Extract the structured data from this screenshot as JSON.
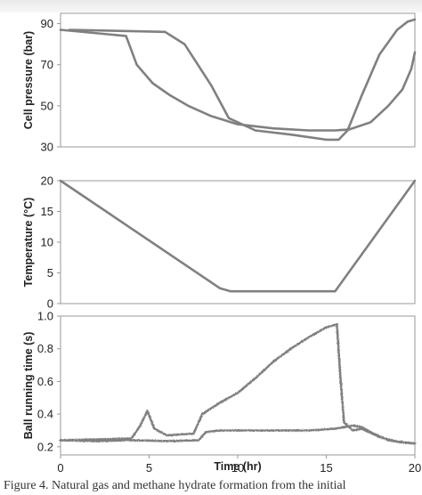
{
  "caption": "Figure 4. Natural gas and methane hydrate formation from the initial",
  "chart_data": [
    {
      "type": "line",
      "ylabel": "Cell pressure (bar)",
      "xlim": [
        0,
        20
      ],
      "ylim": [
        30,
        95
      ],
      "yticks": [
        30,
        50,
        70,
        90
      ],
      "grid": false,
      "color": "#808080",
      "series": [
        {
          "x": [
            0.5,
            5.9,
            7.0,
            8.5,
            9.5,
            11.0,
            13.0,
            15.0,
            15.7,
            16.2,
            17.0,
            18.0,
            19.0,
            19.6,
            20.0
          ],
          "y": [
            87,
            86,
            80,
            60,
            44,
            38,
            36,
            33.5,
            33.5,
            38,
            55,
            75,
            87,
            91,
            92
          ]
        },
        {
          "x": [
            0.0,
            3.7,
            4.3,
            5.2,
            6.2,
            7.2,
            8.5,
            10.0,
            12.0,
            14.0,
            15.5,
            16.3,
            17.5,
            18.5,
            19.3,
            19.8,
            20.0
          ],
          "y": [
            87,
            84,
            70,
            61,
            55,
            50,
            45,
            41,
            39,
            38,
            38,
            38.5,
            42,
            50,
            58,
            68,
            76
          ]
        }
      ]
    },
    {
      "type": "line",
      "ylabel": "Temperature (°C)",
      "xlim": [
        0,
        20
      ],
      "ylim": [
        0,
        20
      ],
      "yticks": [
        0,
        5,
        10,
        15,
        20
      ],
      "grid": false,
      "color": "#808080",
      "series": [
        {
          "x": [
            0.0,
            9.0,
            9.6,
            15.5,
            20.0
          ],
          "y": [
            20,
            2.5,
            2.0,
            2.0,
            20
          ]
        }
      ]
    },
    {
      "type": "line",
      "xlabel": "Time (hr)",
      "ylabel": "Ball running time (s)",
      "xlim": [
        0,
        20
      ],
      "ylim": [
        0.15,
        1.0
      ],
      "xticks": [
        0,
        5,
        10,
        15,
        20
      ],
      "yticks": [
        0.2,
        0.4,
        0.6,
        0.8,
        1.0
      ],
      "grid": false,
      "color": "#808080",
      "series": [
        {
          "x": [
            0.0,
            4.0,
            4.5,
            4.9,
            5.3,
            6.0,
            7.5,
            8.0,
            9.0,
            10.0,
            11.0,
            12.0,
            13.0,
            14.0,
            15.0,
            15.6,
            15.8,
            16.0,
            16.5,
            17.0,
            18.0,
            19.0,
            20.0
          ],
          "y": [
            0.24,
            0.25,
            0.33,
            0.42,
            0.31,
            0.27,
            0.28,
            0.4,
            0.47,
            0.53,
            0.62,
            0.72,
            0.8,
            0.87,
            0.93,
            0.95,
            0.62,
            0.35,
            0.3,
            0.31,
            0.26,
            0.23,
            0.22
          ]
        },
        {
          "x": [
            0.0,
            2.0,
            4.0,
            6.0,
            7.8,
            8.2,
            9.0,
            10.0,
            12.0,
            14.0,
            15.5,
            16.0,
            16.5,
            17.0,
            17.5,
            18.5,
            20.0
          ],
          "y": [
            0.24,
            0.235,
            0.24,
            0.235,
            0.24,
            0.29,
            0.3,
            0.3,
            0.3,
            0.3,
            0.31,
            0.32,
            0.33,
            0.32,
            0.29,
            0.24,
            0.22
          ]
        }
      ]
    }
  ]
}
